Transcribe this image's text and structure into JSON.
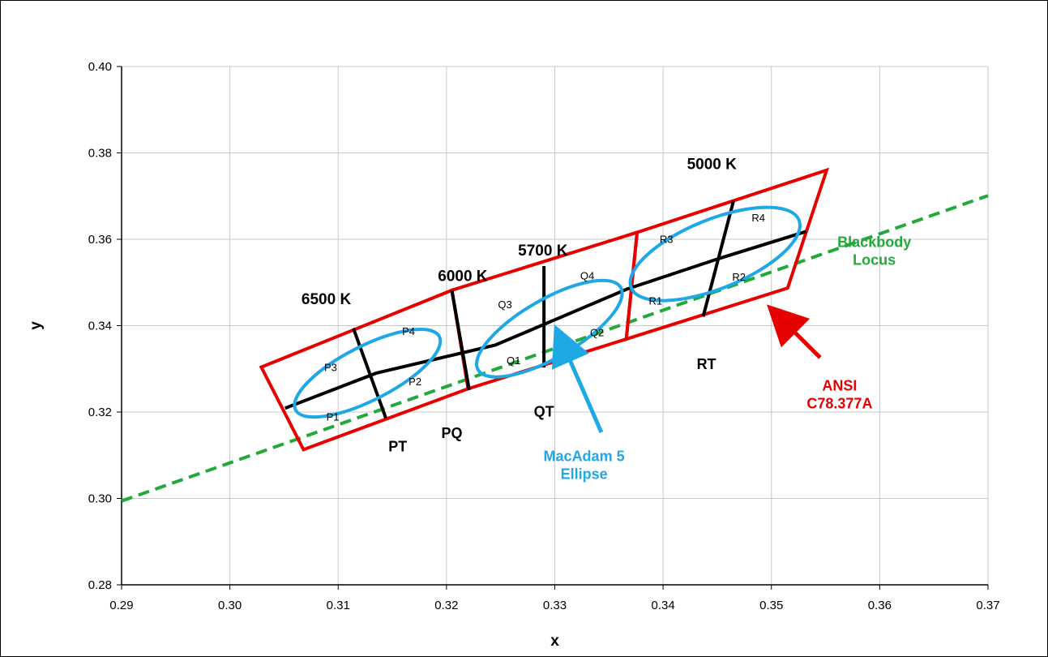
{
  "chart_data": {
    "type": "scatter",
    "title": "",
    "xlabel": "x",
    "ylabel": "y",
    "xlim": [
      0.29,
      0.37
    ],
    "ylim": [
      0.28,
      0.4
    ],
    "x_ticks": [
      "0.29",
      "0.30",
      "0.31",
      "0.32",
      "0.33",
      "0.34",
      "0.35",
      "0.36",
      "0.37"
    ],
    "y_ticks": [
      "0.28",
      "0.30",
      "0.32",
      "0.34",
      "0.36",
      "0.38",
      "0.40"
    ],
    "x_tick_values": [
      0.29,
      0.3,
      0.31,
      0.32,
      0.33,
      0.34,
      0.35,
      0.36,
      0.37
    ],
    "y_tick_values": [
      0.28,
      0.3,
      0.32,
      0.34,
      0.36,
      0.38,
      0.4
    ],
    "grid": true,
    "colors": {
      "ansi": "#e60000",
      "ellipse": "#1ea8e6",
      "blackbody": "#22a93a",
      "lines": "#000000"
    },
    "blackbody_locus": {
      "name": "Blackbody\nLocus",
      "points": [
        [
          0.29,
          0.2994
        ],
        [
          0.37,
          0.3701
        ]
      ]
    },
    "ansi_quads": [
      {
        "label": "PT",
        "label_at": [
          0.3155,
          0.3109
        ],
        "corners": [
          [
            0.3029,
            0.3304
          ],
          [
            0.3205,
            0.3482
          ],
          [
            0.322,
            0.3254
          ],
          [
            0.3068,
            0.3113
          ]
        ]
      },
      {
        "label": "PQ",
        "label_at": [
          0.3205,
          0.314
        ],
        "corners": [
          [
            0.3205,
            0.3482
          ],
          [
            0.3376,
            0.3616
          ],
          [
            0.3366,
            0.3369
          ],
          [
            0.322,
            0.3254
          ]
        ]
      },
      {
        "label": "QT",
        "label_at": [
          0.329,
          0.319
        ],
        "corners": [
          [
            0.3205,
            0.3482
          ],
          [
            0.3376,
            0.3616
          ],
          [
            0.3366,
            0.3369
          ],
          [
            0.322,
            0.3254
          ]
        ]
      },
      {
        "label": "RT",
        "label_at": [
          0.344,
          0.33
        ],
        "corners": [
          [
            0.3376,
            0.3616
          ],
          [
            0.3551,
            0.376
          ],
          [
            0.3515,
            0.3487
          ],
          [
            0.3366,
            0.3369
          ]
        ]
      }
    ],
    "cct_lines": [
      {
        "label": "6500 K",
        "label_at": [
          0.3089,
          0.345
        ],
        "points": [
          [
            0.3114,
            0.3394
          ],
          [
            0.3144,
            0.3186
          ]
        ]
      },
      {
        "label": "6000 K",
        "label_at": [
          0.3215,
          0.3503
        ],
        "points": [
          [
            0.3205,
            0.3481
          ],
          [
            0.3221,
            0.3251
          ]
        ]
      },
      {
        "label": "5700 K",
        "label_at": [
          0.3289,
          0.3562
        ],
        "points": [
          [
            0.329,
            0.3538
          ],
          [
            0.329,
            0.3303
          ]
        ]
      },
      {
        "label": "5000 K",
        "label_at": [
          0.3445,
          0.3762
        ],
        "points": [
          [
            0.3465,
            0.3689
          ],
          [
            0.3437,
            0.3421
          ]
        ]
      }
    ],
    "center_line": {
      "points": [
        [
          0.3051,
          0.3209
        ],
        [
          0.3135,
          0.329
        ],
        [
          0.3245,
          0.3355
        ],
        [
          0.3367,
          0.3485
        ],
        [
          0.3451,
          0.3555
        ],
        [
          0.3532,
          0.3618
        ]
      ]
    },
    "ellipses": [
      {
        "center": [
          0.3127,
          0.329
        ],
        "rx_data": 0.00745,
        "ry_data": 0.0125,
        "rot_deg": -27
      },
      {
        "center": [
          0.3295,
          0.3393
        ],
        "rx_data": 0.0076,
        "ry_data": 0.01345,
        "rot_deg": -30
      },
      {
        "center": [
          0.3448,
          0.3566
        ],
        "rx_data": 0.00835,
        "ry_data": 0.016,
        "rot_deg": -22
      }
    ],
    "point_labels": [
      {
        "text": "P1",
        "at": [
          0.3095,
          0.318
        ]
      },
      {
        "text": "P2",
        "at": [
          0.3171,
          0.3262
        ]
      },
      {
        "text": "P3",
        "at": [
          0.3093,
          0.3295
        ]
      },
      {
        "text": "P4",
        "at": [
          0.3165,
          0.3378
        ]
      },
      {
        "text": "Q1",
        "at": [
          0.3262,
          0.3311
        ]
      },
      {
        "text": "Q2",
        "at": [
          0.3339,
          0.3376
        ]
      },
      {
        "text": "Q3",
        "at": [
          0.3254,
          0.344
        ]
      },
      {
        "text": "Q4",
        "at": [
          0.333,
          0.3507
        ]
      },
      {
        "text": "R1",
        "at": [
          0.3393,
          0.3449
        ]
      },
      {
        "text": "R2",
        "at": [
          0.347,
          0.3504
        ]
      },
      {
        "text": "R3",
        "at": [
          0.3403,
          0.3592
        ]
      },
      {
        "text": "R4",
        "at": [
          0.3488,
          0.3641
        ]
      }
    ],
    "annotations": [
      {
        "text": "MacAdam 5\nEllipse",
        "color": "#1ea8e6",
        "at": [
          0.3327,
          0.3086
        ],
        "arrow_from": [
          0.3343,
          0.3153
        ],
        "arrow_to": [
          0.3307,
          0.336
        ]
      },
      {
        "text": "ANSI\nC78.377A",
        "color": "#e60000",
        "at": [
          0.3563,
          0.325
        ],
        "arrow_from": [
          0.3545,
          0.3326
        ],
        "arrow_to": [
          0.3509,
          0.3416
        ]
      },
      {
        "text": "Blackbody\nLocus",
        "color": "#22a93a",
        "at": [
          0.3595,
          0.3582
        ]
      }
    ]
  }
}
